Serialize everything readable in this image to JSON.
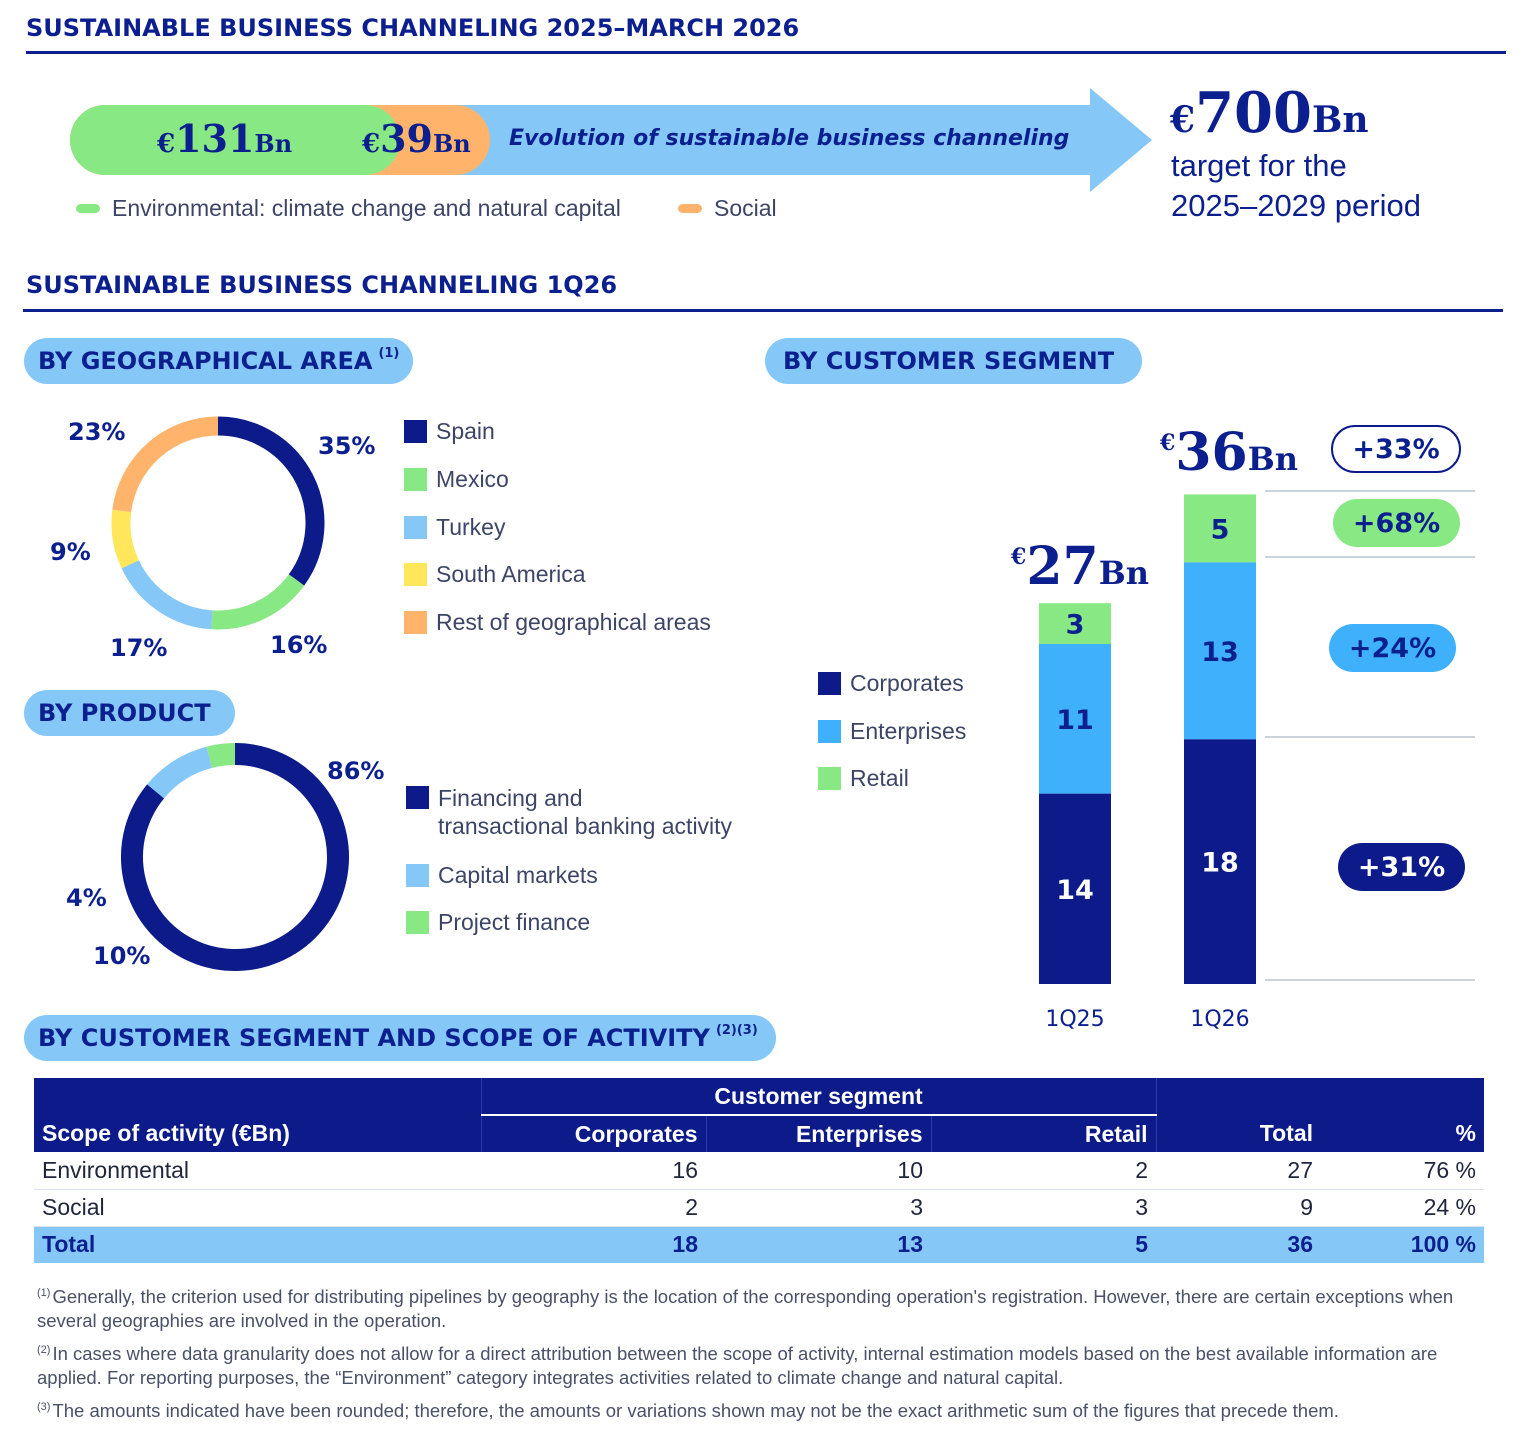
{
  "header": {
    "title": "SUSTAINABLE BUSINESS CHANNELING 2025–MARCH 2026",
    "env_value": "€131Bn",
    "env_cur": "€",
    "env_num": "131",
    "env_unit": "Bn",
    "social_cur": "€",
    "social_num": "39",
    "social_unit": "Bn",
    "arrow_text": "Evolution of sustainable business channeling",
    "target_cur": "€",
    "target_num": "700",
    "target_unit": "Bn",
    "target_line1": "target for the",
    "target_line2": "2025–2029 period",
    "legend_env": "Environmental: climate change and natural capital",
    "legend_social": "Social"
  },
  "section2": {
    "title": "SUSTAINABLE BUSINESS CHANNELING 1Q26"
  },
  "geo": {
    "title": "BY GEOGRAPHICAL AREA",
    "note": "(1)",
    "legend": [
      "Spain",
      "Mexico",
      "Turkey",
      "South America",
      "Rest of geographical areas"
    ],
    "labels": [
      "35%",
      "16%",
      "17%",
      "9%",
      "23%"
    ]
  },
  "product": {
    "title": "BY PRODUCT",
    "legend_line1": "Financing and",
    "legend_line2": "transactional banking activity",
    "legend_capital": "Capital markets",
    "legend_project": "Project finance",
    "labels": [
      "86%",
      "10%",
      "4%"
    ]
  },
  "segment": {
    "title": "BY CUSTOMER SEGMENT",
    "legend": [
      "Corporates",
      "Enterprises",
      "Retail"
    ],
    "total_1q25_cur": "€",
    "total_1q25_num": "27",
    "total_1q25_unit": "Bn",
    "total_1q26_cur": "€",
    "total_1q26_num": "36",
    "total_1q26_unit": "Bn",
    "growth_total": "+33%",
    "growth_retail": "+68%",
    "growth_enterprises": "+24%",
    "growth_corporates": "+31%"
  },
  "scope": {
    "title": "BY CUSTOMER SEGMENT AND SCOPE OF ACTIVITY",
    "note": "(2)(3)",
    "group_header": "Customer segment",
    "columns": [
      "Scope of activity (€Bn)",
      "Corporates",
      "Enterprises",
      "Retail",
      "Total",
      "%"
    ],
    "rows": [
      [
        "Environmental",
        "16",
        "10",
        "2",
        "27",
        "76 %"
      ],
      [
        "Social",
        "2",
        "3",
        "3",
        "9",
        "24 %"
      ],
      [
        "Total",
        "18",
        "13",
        "5",
        "36",
        "100 %"
      ]
    ]
  },
  "footnotes": {
    "n1_mark": "(1)",
    "n1": "Generally, the criterion used for distributing pipelines by geography is the location of the corresponding operation's registration. However, there are certain exceptions when several geographies are involved in the operation.",
    "n2_mark": "(2)",
    "n2": "In cases where data granularity does not allow for a direct attribution between the scope of activity, internal estimation models based on the best available information are applied. For reporting purposes, the “Environment” category integrates activities related to climate change and natural capital.",
    "n3_mark": "(3)",
    "n3": "The amounts indicated have been rounded; therefore, the amounts or variations shown may not be the exact arithmetic sum of the figures that precede them."
  },
  "colors": {
    "navy": "#0c1a8a",
    "blue": "#3fb0fb",
    "light_blue": "#85c8f8",
    "green": "#88e883",
    "yellow": "#ffe65a",
    "orange": "#ffb36b"
  },
  "chart_data": [
    {
      "type": "pie",
      "title": "BY GEOGRAPHICAL AREA",
      "categories": [
        "Spain",
        "Mexico",
        "Turkey",
        "South America",
        "Rest of geographical areas"
      ],
      "values": [
        35,
        16,
        17,
        9,
        23
      ],
      "colors": [
        "#0c1a8a",
        "#88e883",
        "#85c8f8",
        "#ffe65a",
        "#ffb36b"
      ]
    },
    {
      "type": "pie",
      "title": "BY PRODUCT",
      "categories": [
        "Financing and transactional banking activity",
        "Capital markets",
        "Project finance"
      ],
      "values": [
        86,
        10,
        4
      ],
      "colors": [
        "#0c1a8a",
        "#85c8f8",
        "#88e883"
      ]
    },
    {
      "type": "bar",
      "stacked": true,
      "title": "BY CUSTOMER SEGMENT",
      "categories": [
        "1Q25",
        "1Q26"
      ],
      "series": [
        {
          "name": "Corporates",
          "values": [
            14,
            18
          ],
          "color": "#0c1a8a"
        },
        {
          "name": "Enterprises",
          "values": [
            11,
            13
          ],
          "color": "#3fb0fb"
        },
        {
          "name": "Retail",
          "values": [
            3,
            5
          ],
          "color": "#88e883"
        }
      ],
      "totals": [
        27,
        36
      ]
    },
    {
      "type": "bar",
      "stacked": true,
      "title": "Evolution of sustainable business channeling",
      "categories": [
        "2025–March 2026"
      ],
      "series": [
        {
          "name": "Environmental: climate change and natural capital",
          "values": [
            131
          ],
          "color": "#88e883"
        },
        {
          "name": "Social",
          "values": [
            39
          ],
          "color": "#ffb36b"
        }
      ],
      "target": 700
    }
  ]
}
